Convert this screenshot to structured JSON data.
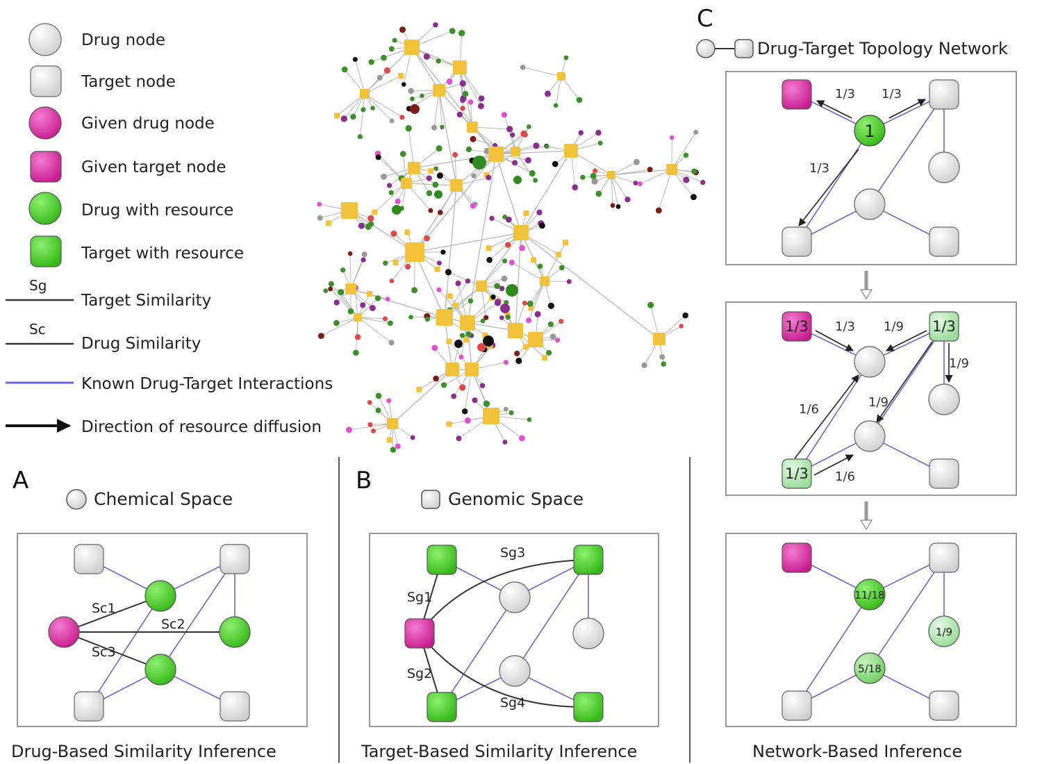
{
  "legend": {
    "drug_node": "Drug node",
    "target_node": "Target node",
    "given_drug_node": "Given drug node",
    "given_target_node": "Given target node",
    "drug_with_resource": "Drug with resource",
    "target_with_resource": "Target with resource",
    "sg_symbol": "Sg",
    "target_similarity": "Target Similarity",
    "sc_symbol": "Sc",
    "drug_similarity": "Drug Similarity",
    "known_interactions": "Known Drug-Target Interactions",
    "diffusion_direction": "Direction of resource diffusion"
  },
  "colors": {
    "drug_node": "#eeeeee",
    "given": "#e040a8",
    "resource": "#4cd424",
    "resource_light": "#a8e8a8",
    "network_target": "#f2c23a",
    "interaction_edge": "#6a66c8",
    "similarity_edge": "#333333"
  },
  "panel_a": {
    "letter": "A",
    "space_label": "Chemical Space",
    "caption": "Drug-Based Similarity Inference",
    "sc1": "Sc1",
    "sc2": "Sc2",
    "sc3": "Sc3"
  },
  "panel_b": {
    "letter": "B",
    "space_label": "Genomic Space",
    "caption": "Target-Based Similarity Inference",
    "sg1": "Sg1",
    "sg2": "Sg2",
    "sg3": "Sg3",
    "sg4": "Sg4"
  },
  "panel_c": {
    "letter": "C",
    "title": "Drug-Target Topology Network",
    "caption": "Network-Based Inference",
    "step1": {
      "center_value": "1",
      "edge_left": "1/3",
      "edge_right": "1/3",
      "edge_down": "1/3"
    },
    "step2": {
      "given_target_value": "1/3",
      "top_right_value": "1/3",
      "bottom_left_value": "1/3",
      "e_top_left": "1/3",
      "e_top_right": "1/9",
      "e_right_down": "1/9",
      "e_diag_left": "1/6",
      "e_diag_mid": "1/9",
      "e_bottom": "1/6"
    },
    "step3": {
      "drug1_value": "11/18",
      "drug2_value": "1/9",
      "drug3_value": "5/18"
    }
  }
}
